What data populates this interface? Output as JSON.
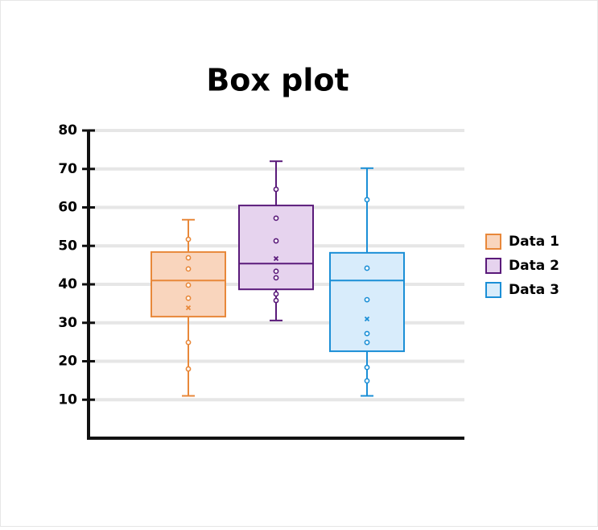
{
  "chart_data": {
    "type": "box",
    "title": "Box plot",
    "ylim": [
      0,
      80
    ],
    "yticks": [
      10,
      20,
      30,
      40,
      50,
      60,
      70,
      80
    ],
    "grid": true,
    "legend": "right",
    "series": [
      {
        "name": "Data 1",
        "color": "#e8883a",
        "fill": "#f9d5bd",
        "min": 11,
        "q1": 31.6,
        "median": 41,
        "q3": 48.4,
        "max": 56.8,
        "mean": 33.9,
        "points": [
          51.7,
          46.9,
          44,
          39.8,
          36.4,
          24.9,
          18
        ]
      },
      {
        "name": "Data 2",
        "color": "#5a1a7a",
        "fill": "#e6d3ee",
        "min": 30.6,
        "q1": 38.7,
        "median": 45.4,
        "q3": 60.5,
        "max": 72,
        "mean": 46.7,
        "points": [
          64.7,
          57.2,
          51.3,
          43.4,
          41.7,
          37.5,
          35.8
        ]
      },
      {
        "name": "Data 3",
        "color": "#1b8fd6",
        "fill": "#d8ecfb",
        "min": 11,
        "q1": 22.6,
        "median": 41,
        "q3": 48.2,
        "max": 70.2,
        "mean": 31,
        "points": [
          62,
          44.2,
          36,
          27.2,
          24.9,
          18.4,
          14.9
        ]
      }
    ]
  }
}
